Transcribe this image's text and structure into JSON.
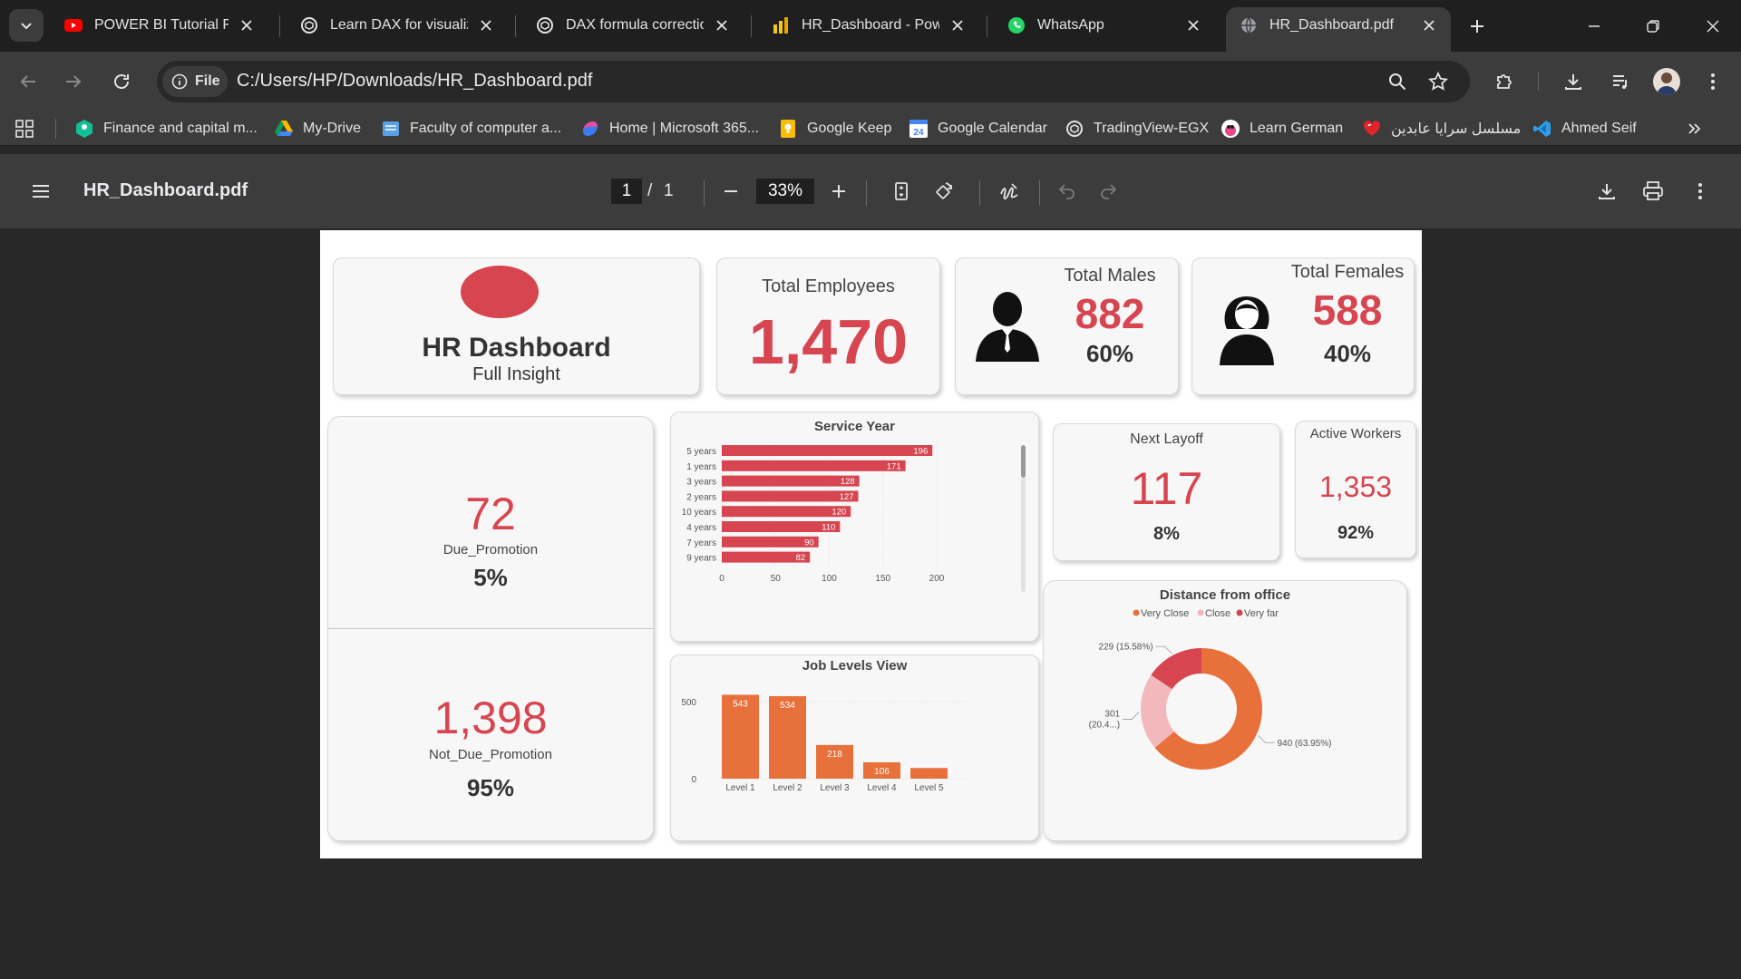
{
  "browser": {
    "tabs": [
      {
        "title": "POWER BI Tutorial Fron",
        "icon": "youtube-icon"
      },
      {
        "title": "Learn DAX for visualiza",
        "icon": "chatgpt-icon"
      },
      {
        "title": "DAX formula correction",
        "icon": "chatgpt-icon"
      },
      {
        "title": "HR_Dashboard - Powe",
        "icon": "powerbi-icon"
      },
      {
        "title": "WhatsApp",
        "icon": "whatsapp-icon"
      },
      {
        "title": "HR_Dashboard.pdf",
        "icon": "globe-icon"
      }
    ],
    "address": {
      "chip": "File",
      "url": "C:/Users/HP/Downloads/HR_Dashboard.pdf"
    },
    "bookmarks": [
      {
        "label": "Finance and capital m...",
        "icon": "khan-academy-icon"
      },
      {
        "label": "My-Drive",
        "icon": "google-drive-icon"
      },
      {
        "label": "Faculty of computer a...",
        "icon": "university-icon"
      },
      {
        "label": "Home | Microsoft 365...",
        "icon": "microsoft-365-icon"
      },
      {
        "label": "Google Keep",
        "icon": "google-keep-icon"
      },
      {
        "label": "Google Calendar",
        "icon": "google-calendar-icon"
      },
      {
        "label": "TradingView-EGX",
        "icon": "chatgpt-icon"
      },
      {
        "label": "Learn German",
        "icon": "duolingo-icon"
      },
      {
        "label": "مسلسل سرايا عابدين",
        "icon": "heart-icon"
      },
      {
        "label": "Ahmed Seif",
        "icon": "vscode-icon"
      }
    ],
    "calendar_day": "24"
  },
  "pdf": {
    "title": "HR_Dashboard.pdf",
    "current_page": "1",
    "page_sep": "/",
    "total_pages": "1",
    "zoom": "33%"
  },
  "dashboard": {
    "title": "HR Dashboard",
    "subtitle": "Full Insight",
    "total_employees": {
      "label": "Total Employees",
      "value": "1,470"
    },
    "total_males": {
      "label": "Total Males",
      "value": "882",
      "pct": "60%"
    },
    "total_females": {
      "label": "Total Females",
      "value": "588",
      "pct": "40%"
    },
    "due_promotion": {
      "value": "72",
      "label": "Due_Promotion",
      "pct": "5%"
    },
    "not_due_promotion": {
      "value": "1,398",
      "label": "Not_Due_Promotion",
      "pct": "95%"
    },
    "next_layoff": {
      "label": "Next Layoff",
      "value": "117",
      "pct": "8%"
    },
    "active_workers": {
      "label": "Active Workers",
      "value": "1,353",
      "pct": "92%"
    },
    "colors": {
      "accent": "#d64550",
      "orange": "#e8703a",
      "pink": "#f2b8bc"
    }
  },
  "chart_data": [
    {
      "type": "bar",
      "orientation": "horizontal",
      "title": "Service Year",
      "categories": [
        "5 years",
        "1 years",
        "3 years",
        "2 years",
        "10 years",
        "4 years",
        "7 years",
        "9 years"
      ],
      "values": [
        196,
        171,
        128,
        127,
        120,
        110,
        90,
        82
      ],
      "xlim": [
        0,
        200
      ],
      "xticks": [
        "0",
        "50",
        "100",
        "150",
        "200"
      ],
      "color": "#d64550"
    },
    {
      "type": "bar",
      "title": "Job Levels View",
      "categories": [
        "Level 1",
        "Level 2",
        "Level 3",
        "Level 4",
        "Level 5"
      ],
      "values": [
        543,
        534,
        218,
        106,
        69
      ],
      "data_labels": [
        "543",
        "534",
        "218",
        "106",
        ""
      ],
      "ylim": [
        0,
        540
      ],
      "yticks": [
        "0",
        "500"
      ],
      "color": "#e8703a"
    },
    {
      "type": "pie",
      "donut": true,
      "title": "Distance from office",
      "legend_position": "top",
      "series": [
        {
          "name": "Very Close",
          "value": 940,
          "label": "940 (63.95%)",
          "color": "#e8703a"
        },
        {
          "name": "Close",
          "value": 301,
          "label": "301 (20.4...)",
          "color": "#f2b8bc"
        },
        {
          "name": "Very far",
          "value": 229,
          "label": "229 (15.58%)",
          "color": "#d64550"
        }
      ]
    }
  ]
}
